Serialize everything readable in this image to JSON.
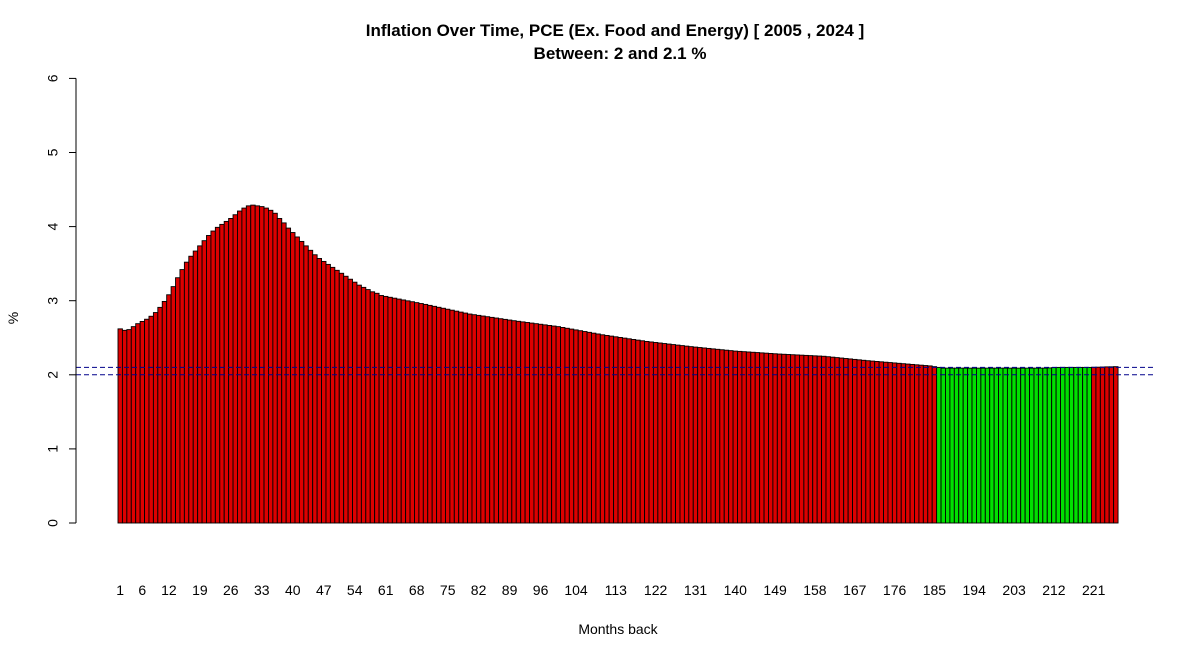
{
  "chart_data": {
    "type": "bar",
    "title": "Inflation Over Time, PCE (Ex. Food and Energy) [ 2005 ,  2024 ]",
    "subtitle": "Between:  2  and  2.1  %",
    "xlabel": "Months back",
    "ylabel": "%",
    "ylim": [
      0,
      6
    ],
    "yticks": [
      "0",
      "1",
      "2",
      "3",
      "4",
      "5",
      "6"
    ],
    "xtick_labels": [
      "1",
      "6",
      "12",
      "19",
      "26",
      "33",
      "40",
      "47",
      "54",
      "61",
      "68",
      "75",
      "82",
      "89",
      "96",
      "104",
      "113",
      "122",
      "131",
      "140",
      "149",
      "158",
      "167",
      "176",
      "185",
      "194",
      "203",
      "212",
      "221"
    ],
    "reference_lines": [
      2.0,
      2.1
    ],
    "band": {
      "low": 2.0,
      "high": 2.1
    },
    "anchors": [
      [
        1,
        2.62
      ],
      [
        2,
        2.6
      ],
      [
        3,
        2.61
      ],
      [
        4,
        2.65
      ],
      [
        5,
        2.69
      ],
      [
        6,
        2.72
      ],
      [
        7,
        2.75
      ],
      [
        8,
        2.79
      ],
      [
        9,
        2.84
      ],
      [
        10,
        2.91
      ],
      [
        11,
        2.99
      ],
      [
        12,
        3.08
      ],
      [
        13,
        3.19
      ],
      [
        14,
        3.31
      ],
      [
        15,
        3.42
      ],
      [
        16,
        3.52
      ],
      [
        17,
        3.6
      ],
      [
        18,
        3.67
      ],
      [
        19,
        3.74
      ],
      [
        20,
        3.81
      ],
      [
        21,
        3.88
      ],
      [
        22,
        3.94
      ],
      [
        23,
        3.99
      ],
      [
        24,
        4.03
      ],
      [
        25,
        4.07
      ],
      [
        26,
        4.11
      ],
      [
        27,
        4.16
      ],
      [
        28,
        4.21
      ],
      [
        29,
        4.25
      ],
      [
        30,
        4.28
      ],
      [
        31,
        4.29
      ],
      [
        32,
        4.28
      ],
      [
        33,
        4.27
      ],
      [
        34,
        4.25
      ],
      [
        35,
        4.22
      ],
      [
        36,
        4.18
      ],
      [
        37,
        4.11
      ],
      [
        38,
        4.05
      ],
      [
        39,
        3.98
      ],
      [
        40,
        3.92
      ],
      [
        41,
        3.86
      ],
      [
        42,
        3.8
      ],
      [
        43,
        3.74
      ],
      [
        44,
        3.68
      ],
      [
        45,
        3.62
      ],
      [
        46,
        3.57
      ],
      [
        47,
        3.53
      ],
      [
        48,
        3.49
      ],
      [
        49,
        3.45
      ],
      [
        50,
        3.41
      ],
      [
        51,
        3.37
      ],
      [
        52,
        3.33
      ],
      [
        53,
        3.29
      ],
      [
        54,
        3.25
      ],
      [
        55,
        3.21
      ],
      [
        56,
        3.18
      ],
      [
        57,
        3.15
      ],
      [
        58,
        3.12
      ],
      [
        59,
        3.1
      ],
      [
        60,
        3.07
      ],
      [
        70,
        2.95
      ],
      [
        80,
        2.82
      ],
      [
        90,
        2.73
      ],
      [
        100,
        2.65
      ],
      [
        110,
        2.54
      ],
      [
        120,
        2.45
      ],
      [
        130,
        2.38
      ],
      [
        140,
        2.32
      ],
      [
        150,
        2.28
      ],
      [
        160,
        2.25
      ],
      [
        170,
        2.19
      ],
      [
        180,
        2.14
      ],
      [
        184,
        2.12
      ],
      [
        186,
        2.1
      ],
      [
        187,
        2.09
      ],
      [
        194,
        2.09
      ],
      [
        200,
        2.09
      ],
      [
        210,
        2.09
      ],
      [
        213,
        2.1
      ],
      [
        220,
        2.1
      ],
      [
        226,
        2.11
      ]
    ],
    "n_bars": 226,
    "colors": {
      "in_band": "#00e000",
      "out_of_band": "#dd0000",
      "bar_border": "#000000",
      "reference_line": "#00008b"
    },
    "grid": false,
    "legend": "none"
  }
}
